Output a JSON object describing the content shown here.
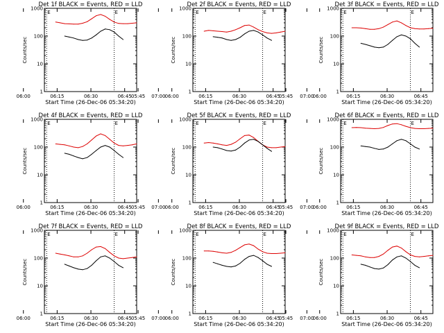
{
  "colors": {
    "events": "#000000",
    "lld": "#dd0000",
    "axes": "#000000",
    "background": "#ffffff"
  },
  "chart_data": [
    {
      "type": "line",
      "title": "Det 1f BLACK = Events, RED = LLD",
      "xlabel": "Start Time (26-Dec-06 05:34:20)",
      "ylabel": "Counts/sec",
      "y_scale": "log",
      "ylim": [
        1,
        1000
      ],
      "y_ticks": [
        1,
        10,
        100,
        1000
      ],
      "y_tick_labels": [
        "1",
        "10",
        "100",
        "1000"
      ],
      "x_ticks": [
        "05:45",
        "06:00",
        "06:15",
        "06:30",
        "06:45",
        "07:00"
      ],
      "xlim_minutes": [
        35,
        76
      ],
      "markers": [
        {
          "label": "E",
          "x_minutes": 36
        },
        {
          "label": "E",
          "x_minutes": 66
        }
      ],
      "x_minutes": [
        40,
        42,
        44,
        46,
        48,
        50,
        52,
        54,
        56,
        58,
        60,
        62,
        64,
        66,
        68,
        70,
        72,
        74,
        76
      ],
      "series": [
        {
          "name": "LLD",
          "color": "red",
          "values": [
            320,
            300,
            280,
            275,
            270,
            270,
            290,
            330,
            420,
            540,
            600,
            520,
            400,
            320,
            285,
            280,
            280,
            290,
            300
          ]
        },
        {
          "name": "Events",
          "color": "black",
          "values": [
            null,
            null,
            100,
            92,
            85,
            75,
            70,
            72,
            85,
            110,
            150,
            180,
            170,
            140,
            100,
            75,
            null,
            null,
            null
          ]
        }
      ]
    },
    {
      "type": "line",
      "title": "Det 2f BLACK = Events, RED = LLD",
      "xlabel": "Start Time (26-Dec-06 05:34:20)",
      "ylabel": "Counts/sec",
      "y_scale": "log",
      "ylim": [
        1,
        1000
      ],
      "y_ticks": [
        1,
        10,
        100,
        1000
      ],
      "y_tick_labels": [
        "1",
        "10",
        "100",
        "1000"
      ],
      "x_ticks": [
        "05:45",
        "06:00",
        "06:15",
        "06:30",
        "06:45",
        "07:00"
      ],
      "xlim_minutes": [
        35,
        76
      ],
      "markers": [
        {
          "label": "E",
          "x_minutes": 36
        },
        {
          "label": "E",
          "x_minutes": 66
        }
      ],
      "x_minutes": [
        40,
        42,
        44,
        46,
        48,
        50,
        52,
        54,
        56,
        58,
        60,
        62,
        64,
        66,
        68,
        70,
        72,
        74,
        76
      ],
      "series": [
        {
          "name": "LLD",
          "color": "red",
          "values": [
            150,
            160,
            155,
            150,
            145,
            140,
            150,
            170,
            200,
            240,
            250,
            210,
            170,
            145,
            130,
            125,
            130,
            140,
            150
          ]
        },
        {
          "name": "Events",
          "color": "black",
          "values": [
            null,
            null,
            95,
            90,
            85,
            75,
            70,
            75,
            90,
            120,
            150,
            160,
            140,
            110,
            85,
            70,
            null,
            null,
            null
          ]
        }
      ]
    },
    {
      "type": "line",
      "title": "Det 3f BLACK = Events, RED = LLD",
      "xlabel": "Start Time (26-Dec-06 05:34:20)",
      "ylabel": "Counts/sec",
      "y_scale": "log",
      "ylim": [
        1,
        1000
      ],
      "y_ticks": [
        1,
        10,
        100,
        1000
      ],
      "y_tick_labels": [
        "1",
        "10",
        "100",
        "1000"
      ],
      "x_ticks": [
        "05:45",
        "06:00",
        "06:15",
        "06:30",
        "06:45",
        "07:00"
      ],
      "xlim_minutes": [
        35,
        76
      ],
      "markers": [
        {
          "label": "E",
          "x_minutes": 36
        },
        {
          "label": "E",
          "x_minutes": 66
        }
      ],
      "x_minutes": [
        40,
        42,
        44,
        46,
        48,
        50,
        52,
        54,
        56,
        58,
        60,
        62,
        64,
        66,
        68,
        70,
        72,
        74,
        76
      ],
      "series": [
        {
          "name": "LLD",
          "color": "red",
          "values": [
            200,
            200,
            195,
            185,
            175,
            175,
            185,
            210,
            260,
            320,
            350,
            300,
            240,
            200,
            185,
            180,
            180,
            185,
            190
          ]
        },
        {
          "name": "Events",
          "color": "black",
          "values": [
            null,
            null,
            55,
            50,
            45,
            40,
            38,
            40,
            50,
            70,
            95,
            110,
            100,
            80,
            55,
            40,
            null,
            null,
            null
          ]
        }
      ]
    },
    {
      "type": "line",
      "title": "Det 4f BLACK = Events, RED = LLD",
      "xlabel": "Start Time (26-Dec-06 05:34:20)",
      "ylabel": "Counts/sec",
      "y_scale": "log",
      "ylim": [
        1,
        1000
      ],
      "y_ticks": [
        1,
        10,
        100,
        1000
      ],
      "y_tick_labels": [
        "1",
        "10",
        "100",
        "1000"
      ],
      "x_ticks": [
        "05:45",
        "06:00",
        "06:15",
        "06:30",
        "06:45",
        "07:00"
      ],
      "xlim_minutes": [
        35,
        76
      ],
      "markers": [
        {
          "label": "E",
          "x_minutes": 36
        },
        {
          "label": "E",
          "x_minutes": 66
        }
      ],
      "x_minutes": [
        40,
        42,
        44,
        46,
        48,
        50,
        52,
        54,
        56,
        58,
        60,
        62,
        64,
        66,
        68,
        70,
        72,
        74,
        76
      ],
      "series": [
        {
          "name": "LLD",
          "color": "red",
          "values": [
            130,
            125,
            120,
            110,
            100,
            95,
            105,
            130,
            180,
            250,
            300,
            260,
            190,
            140,
            115,
            110,
            115,
            120,
            130
          ]
        },
        {
          "name": "Events",
          "color": "black",
          "values": [
            null,
            null,
            60,
            55,
            48,
            42,
            38,
            42,
            55,
            75,
            100,
            115,
            100,
            75,
            55,
            42,
            null,
            null,
            null
          ]
        }
      ]
    },
    {
      "type": "line",
      "title": "Det 5f BLACK = Events, RED = LLD",
      "xlabel": "Start Time (26-Dec-06 05:34:20)",
      "ylabel": "Counts/sec",
      "y_scale": "log",
      "ylim": [
        1,
        1000
      ],
      "y_ticks": [
        1,
        10,
        100,
        1000
      ],
      "y_tick_labels": [
        "1",
        "10",
        "100",
        "1000"
      ],
      "x_ticks": [
        "05:45",
        "06:00",
        "06:15",
        "06:30",
        "06:45",
        "07:00"
      ],
      "xlim_minutes": [
        35,
        76
      ],
      "markers": [
        {
          "label": "E",
          "x_minutes": 36
        },
        {
          "label": "E",
          "x_minutes": 66
        }
      ],
      "x_minutes": [
        40,
        42,
        44,
        46,
        48,
        50,
        52,
        54,
        56,
        58,
        60,
        62,
        64,
        66,
        68,
        70,
        72,
        74,
        76
      ],
      "series": [
        {
          "name": "LLD",
          "color": "red",
          "values": [
            140,
            145,
            140,
            130,
            120,
            115,
            125,
            150,
            200,
            260,
            270,
            220,
            160,
            120,
            100,
            95,
            95,
            100,
            105
          ]
        },
        {
          "name": "Events",
          "color": "black",
          "values": [
            null,
            null,
            100,
            95,
            85,
            75,
            72,
            78,
            100,
            140,
            180,
            190,
            160,
            120,
            90,
            70,
            null,
            null,
            null
          ]
        }
      ]
    },
    {
      "type": "line",
      "title": "Det 6f BLACK = Events, RED = LLD",
      "xlabel": "Start Time (26-Dec-06 05:34:20)",
      "ylabel": "Counts/sec",
      "y_scale": "log",
      "ylim": [
        1,
        1000
      ],
      "y_ticks": [
        1,
        10,
        100,
        1000
      ],
      "y_tick_labels": [
        "1",
        "10",
        "100",
        "1000"
      ],
      "x_ticks": [
        "05:45",
        "06:00",
        "06:15",
        "06:30",
        "06:45",
        "07:00"
      ],
      "xlim_minutes": [
        35,
        76
      ],
      "markers": [
        {
          "label": "E",
          "x_minutes": 36
        },
        {
          "label": "E",
          "x_minutes": 66
        }
      ],
      "x_minutes": [
        40,
        42,
        44,
        46,
        48,
        50,
        52,
        54,
        56,
        58,
        60,
        62,
        64,
        66,
        68,
        70,
        72,
        74,
        76
      ],
      "series": [
        {
          "name": "LLD",
          "color": "red",
          "values": [
            500,
            510,
            500,
            480,
            470,
            460,
            470,
            510,
            600,
            680,
            700,
            640,
            560,
            500,
            470,
            460,
            460,
            470,
            480
          ]
        },
        {
          "name": "Events",
          "color": "black",
          "values": [
            null,
            null,
            110,
            105,
            100,
            90,
            82,
            85,
            100,
            130,
            170,
            190,
            170,
            130,
            100,
            85,
            null,
            null,
            null
          ]
        }
      ]
    },
    {
      "type": "line",
      "title": "Det 7f BLACK = Events, RED = LLD",
      "xlabel": "Start Time (26-Dec-06 05:34:20)",
      "ylabel": "Counts/sec",
      "y_scale": "log",
      "ylim": [
        1,
        1000
      ],
      "y_ticks": [
        1,
        10,
        100,
        1000
      ],
      "y_tick_labels": [
        "1",
        "10",
        "100",
        "1000"
      ],
      "x_ticks": [
        "05:45",
        "06:00",
        "06:15",
        "06:30",
        "06:45",
        "07:00"
      ],
      "xlim_minutes": [
        35,
        76
      ],
      "markers": [
        {
          "label": "E",
          "x_minutes": 36
        },
        {
          "label": "E",
          "x_minutes": 66
        }
      ],
      "x_minutes": [
        40,
        42,
        44,
        46,
        48,
        50,
        52,
        54,
        56,
        58,
        60,
        62,
        64,
        66,
        68,
        70,
        72,
        74,
        76
      ],
      "series": [
        {
          "name": "LLD",
          "color": "red",
          "values": [
            150,
            140,
            130,
            120,
            110,
            110,
            120,
            150,
            200,
            250,
            260,
            220,
            160,
            120,
            100,
            95,
            100,
            105,
            110
          ]
        },
        {
          "name": "Events",
          "color": "black",
          "values": [
            null,
            null,
            60,
            52,
            45,
            40,
            38,
            42,
            55,
            80,
            110,
            120,
            100,
            75,
            55,
            45,
            null,
            null,
            null
          ]
        }
      ]
    },
    {
      "type": "line",
      "title": "Det 8f BLACK = Events, RED = LLD",
      "xlabel": "Start Time (26-Dec-06 05:34:20)",
      "ylabel": "Counts/sec",
      "y_scale": "log",
      "ylim": [
        1,
        1000
      ],
      "y_ticks": [
        1,
        10,
        100,
        1000
      ],
      "y_tick_labels": [
        "1",
        "10",
        "100",
        "1000"
      ],
      "x_ticks": [
        "05:45",
        "06:00",
        "06:15",
        "06:30",
        "06:45",
        "07:00"
      ],
      "xlim_minutes": [
        35,
        76
      ],
      "markers": [
        {
          "label": "E",
          "x_minutes": 36
        },
        {
          "label": "E",
          "x_minutes": 66
        }
      ],
      "x_minutes": [
        40,
        42,
        44,
        46,
        48,
        50,
        52,
        54,
        56,
        58,
        60,
        62,
        64,
        66,
        68,
        70,
        72,
        74,
        76
      ],
      "series": [
        {
          "name": "LLD",
          "color": "red",
          "values": [
            180,
            180,
            175,
            165,
            155,
            150,
            160,
            190,
            240,
            300,
            320,
            280,
            210,
            170,
            150,
            145,
            145,
            150,
            155
          ]
        },
        {
          "name": "Events",
          "color": "black",
          "values": [
            null,
            null,
            70,
            62,
            55,
            50,
            48,
            52,
            65,
            90,
            115,
            125,
            105,
            80,
            60,
            50,
            null,
            null,
            null
          ]
        }
      ]
    },
    {
      "type": "line",
      "title": "Det 9f BLACK = Events, RED = LLD",
      "xlabel": "Start Time (26-Dec-06 05:34:20)",
      "ylabel": "Counts/sec",
      "y_scale": "log",
      "ylim": [
        1,
        1000
      ],
      "y_ticks": [
        1,
        10,
        100,
        1000
      ],
      "y_tick_labels": [
        "1",
        "10",
        "100",
        "1000"
      ],
      "x_ticks": [
        "05:45",
        "06:00",
        "06:15",
        "06:30",
        "06:45",
        "07:00"
      ],
      "xlim_minutes": [
        35,
        76
      ],
      "markers": [
        {
          "label": "E",
          "x_minutes": 36
        },
        {
          "label": "E",
          "x_minutes": 66
        }
      ],
      "x_minutes": [
        40,
        42,
        44,
        46,
        48,
        50,
        52,
        54,
        56,
        58,
        60,
        62,
        64,
        66,
        68,
        70,
        72,
        74,
        76
      ],
      "series": [
        {
          "name": "LLD",
          "color": "red",
          "values": [
            130,
            125,
            120,
            110,
            105,
            105,
            115,
            140,
            190,
            250,
            270,
            230,
            170,
            130,
            115,
            110,
            115,
            120,
            125
          ]
        },
        {
          "name": "Events",
          "color": "black",
          "values": [
            null,
            null,
            60,
            55,
            48,
            42,
            40,
            44,
            58,
            85,
            110,
            120,
            100,
            75,
            55,
            45,
            null,
            null,
            null
          ]
        }
      ]
    }
  ]
}
